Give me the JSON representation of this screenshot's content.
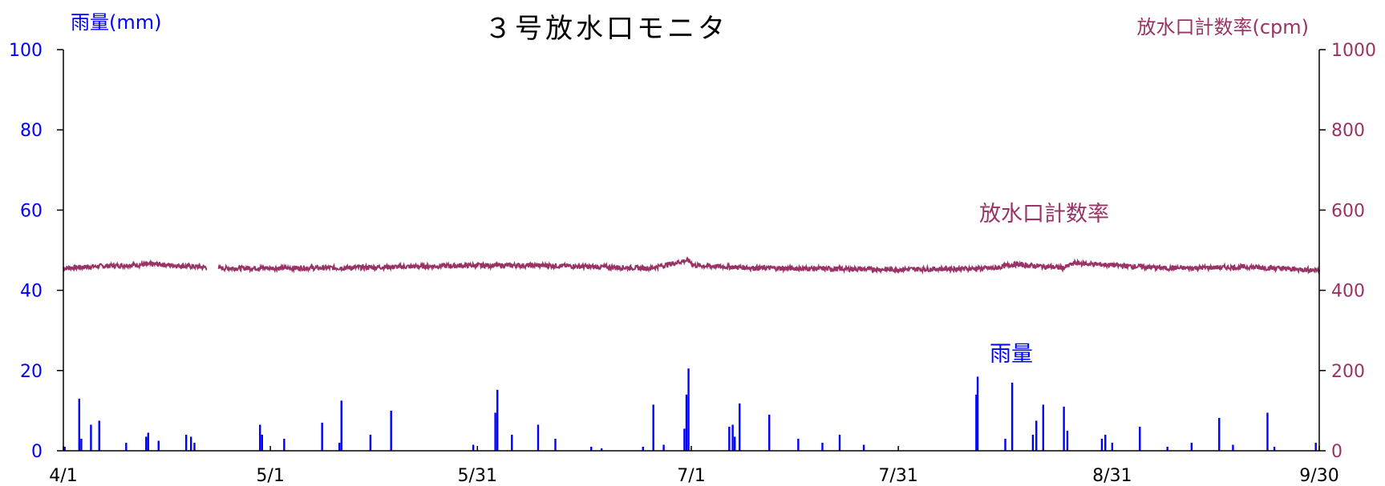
{
  "chart_data": {
    "type": "line",
    "title": "３号放水口モニタ",
    "left_axis_label": "雨量(mm)",
    "right_axis_label": "放水口計数率(cpm)",
    "left_ylim": [
      0,
      100
    ],
    "left_yticks": [
      0,
      20,
      40,
      60,
      80,
      100
    ],
    "right_ylim": [
      0,
      1000
    ],
    "right_yticks": [
      0,
      200,
      400,
      600,
      800,
      1000
    ],
    "x_range_days": [
      0,
      182
    ],
    "x_ticks": [
      {
        "day": 0,
        "label": "4/1"
      },
      {
        "day": 30,
        "label": "5/1"
      },
      {
        "day": 60,
        "label": "5/31"
      },
      {
        "day": 91,
        "label": "7/1"
      },
      {
        "day": 121,
        "label": "7/31"
      },
      {
        "day": 152,
        "label": "8/31"
      },
      {
        "day": 182,
        "label": "9/30"
      }
    ],
    "grid": false,
    "annotations": {
      "count_rate_label": "放水口計数率",
      "rainfall_label": "雨量"
    },
    "series": [
      {
        "name": "放水口計数率",
        "axis": "right",
        "color": "#993366",
        "render": "line",
        "baseline": 455,
        "gap": [
          20.8,
          22.5
        ],
        "points": [
          {
            "day": 0,
            "value": 455
          },
          {
            "day": 5,
            "value": 460
          },
          {
            "day": 13.5,
            "value": 465
          },
          {
            "day": 20,
            "value": 458
          },
          {
            "day": 22.5,
            "value": 455
          },
          {
            "day": 40,
            "value": 456
          },
          {
            "day": 59,
            "value": 462
          },
          {
            "day": 70,
            "value": 462
          },
          {
            "day": 85,
            "value": 455
          },
          {
            "day": 90.5,
            "value": 475
          },
          {
            "day": 91.5,
            "value": 462
          },
          {
            "day": 100,
            "value": 456
          },
          {
            "day": 120,
            "value": 452
          },
          {
            "day": 135,
            "value": 455
          },
          {
            "day": 137.5,
            "value": 465
          },
          {
            "day": 145,
            "value": 456
          },
          {
            "day": 146.5,
            "value": 468
          },
          {
            "day": 160,
            "value": 455
          },
          {
            "day": 172,
            "value": 458
          },
          {
            "day": 182,
            "value": 450
          }
        ]
      },
      {
        "name": "雨量",
        "axis": "left",
        "color": "#0000ff",
        "render": "spikes",
        "points": [
          {
            "day": 0.2,
            "value": 1
          },
          {
            "day": 2.3,
            "value": 13
          },
          {
            "day": 2.6,
            "value": 3
          },
          {
            "day": 4.0,
            "value": 6.5
          },
          {
            "day": 5.2,
            "value": 7.5
          },
          {
            "day": 9.1,
            "value": 2
          },
          {
            "day": 12.0,
            "value": 3.5
          },
          {
            "day": 12.3,
            "value": 4.5
          },
          {
            "day": 13.8,
            "value": 2.5
          },
          {
            "day": 17.8,
            "value": 4
          },
          {
            "day": 18.5,
            "value": 3.5
          },
          {
            "day": 19.0,
            "value": 2
          },
          {
            "day": 28.5,
            "value": 6.5
          },
          {
            "day": 28.8,
            "value": 4
          },
          {
            "day": 32.0,
            "value": 3
          },
          {
            "day": 37.5,
            "value": 7
          },
          {
            "day": 40.0,
            "value": 2
          },
          {
            "day": 40.3,
            "value": 12.5
          },
          {
            "day": 44.5,
            "value": 4
          },
          {
            "day": 47.5,
            "value": 10
          },
          {
            "day": 59.4,
            "value": 1.5
          },
          {
            "day": 62.6,
            "value": 9.5
          },
          {
            "day": 62.9,
            "value": 15.2
          },
          {
            "day": 65.0,
            "value": 4
          },
          {
            "day": 68.8,
            "value": 6.5
          },
          {
            "day": 71.3,
            "value": 3
          },
          {
            "day": 76.5,
            "value": 1
          },
          {
            "day": 78.0,
            "value": 0.6
          },
          {
            "day": 84.0,
            "value": 1
          },
          {
            "day": 85.5,
            "value": 11.5
          },
          {
            "day": 87.0,
            "value": 1.5
          },
          {
            "day": 90.0,
            "value": 5.5
          },
          {
            "day": 90.3,
            "value": 14
          },
          {
            "day": 90.6,
            "value": 20.5
          },
          {
            "day": 96.5,
            "value": 6
          },
          {
            "day": 97.0,
            "value": 6.5
          },
          {
            "day": 97.3,
            "value": 3.5
          },
          {
            "day": 98.0,
            "value": 11.8
          },
          {
            "day": 102.3,
            "value": 9
          },
          {
            "day": 106.5,
            "value": 3
          },
          {
            "day": 110.0,
            "value": 2
          },
          {
            "day": 112.5,
            "value": 4
          },
          {
            "day": 116.0,
            "value": 1.5
          },
          {
            "day": 132.3,
            "value": 14
          },
          {
            "day": 132.5,
            "value": 18.5
          },
          {
            "day": 136.5,
            "value": 3
          },
          {
            "day": 137.5,
            "value": 17
          },
          {
            "day": 140.5,
            "value": 4
          },
          {
            "day": 141.0,
            "value": 7.5
          },
          {
            "day": 142.0,
            "value": 11.5
          },
          {
            "day": 145.0,
            "value": 11
          },
          {
            "day": 145.5,
            "value": 5
          },
          {
            "day": 150.5,
            "value": 3
          },
          {
            "day": 151.0,
            "value": 4
          },
          {
            "day": 152.0,
            "value": 2
          },
          {
            "day": 156.0,
            "value": 6
          },
          {
            "day": 160.0,
            "value": 1
          },
          {
            "day": 163.5,
            "value": 2
          },
          {
            "day": 167.5,
            "value": 8.2
          },
          {
            "day": 169.5,
            "value": 1.5
          },
          {
            "day": 174.5,
            "value": 9.5
          },
          {
            "day": 175.5,
            "value": 1
          },
          {
            "day": 181.5,
            "value": 2
          }
        ]
      }
    ]
  }
}
